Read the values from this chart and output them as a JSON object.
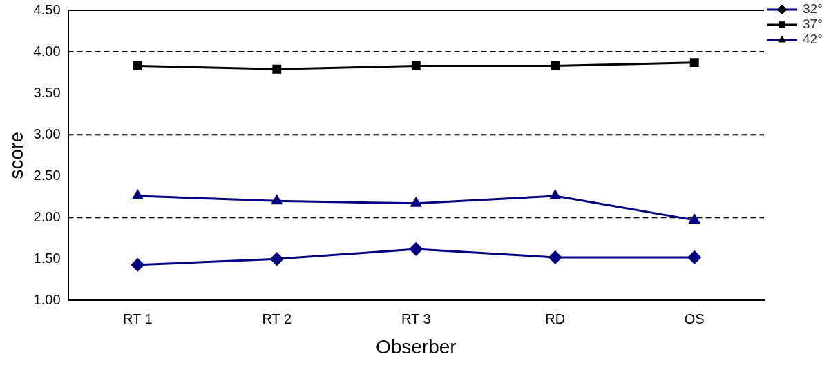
{
  "chart_data": {
    "type": "line",
    "xlabel": "Obserber",
    "ylabel": "score",
    "categories": [
      "RT 1",
      "RT 2",
      "RT 3",
      "RD",
      "OS"
    ],
    "series": [
      {
        "name": "32°",
        "color": "#000080",
        "marker": "diamond",
        "values": [
          1.43,
          1.5,
          1.62,
          1.52,
          1.52
        ]
      },
      {
        "name": "37°",
        "color": "#000000",
        "marker": "square",
        "values": [
          3.83,
          3.79,
          3.83,
          3.83,
          3.87
        ]
      },
      {
        "name": "42°",
        "color": "#000080",
        "marker": "triangle",
        "values": [
          2.26,
          2.2,
          2.17,
          2.26,
          1.97
        ]
      }
    ],
    "ylim": [
      1,
      4.5
    ],
    "yticks": [
      {
        "value": 1,
        "label": "1.00"
      },
      {
        "value": 1.5,
        "label": "1.50"
      },
      {
        "value": 2,
        "label": "2.00"
      },
      {
        "value": 2.5,
        "label": "2.50"
      },
      {
        "value": 3,
        "label": "3.00"
      },
      {
        "value": 3.5,
        "label": "3.50"
      },
      {
        "value": 4,
        "label": "4.00"
      },
      {
        "value": 4.5,
        "label": "4.50"
      }
    ],
    "ref_lines": [
      {
        "axis": "y",
        "value": 2,
        "line_style": "dashed"
      },
      {
        "axis": "y",
        "value": 3,
        "line_style": "dashed"
      },
      {
        "axis": "y",
        "value": 4,
        "line_style": "dashed"
      }
    ],
    "grid": false,
    "legend": "top right",
    "line_style": "solid"
  }
}
